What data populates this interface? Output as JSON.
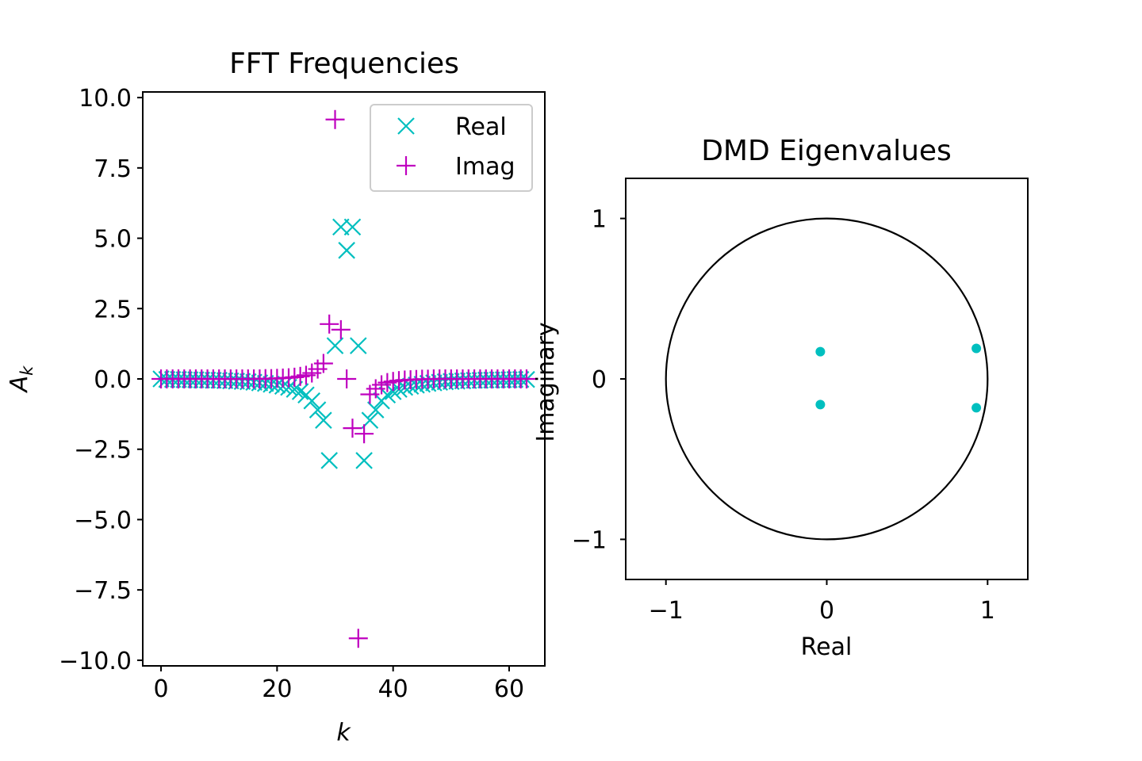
{
  "colors": {
    "real": "#00bfbf",
    "imag": "#bf00bf",
    "eig": "#00bfbf",
    "circle": "#000000"
  },
  "chart_data": [
    {
      "type": "scatter",
      "title": "FFT Frequencies",
      "xlabel": "k",
      "ylabel_base": "A",
      "ylabel_sub": "k",
      "xlim": [
        -3.15,
        66.15
      ],
      "ylim": [
        -10.2,
        10.2
      ],
      "xticks": [
        0,
        20,
        40,
        60
      ],
      "xtick_labels": [
        "0",
        "20",
        "40",
        "60"
      ],
      "yticks": [
        10,
        7.5,
        5,
        2.5,
        0,
        -2.5,
        -5,
        -7.5,
        -10
      ],
      "ytick_labels": [
        "10.0",
        "7.5",
        "5.0",
        "2.5",
        "0.0",
        "−2.5",
        "−5.0",
        "−7.5",
        "−10.0"
      ],
      "legend": {
        "placement": "top-right",
        "entries": [
          "Real",
          "Imag"
        ]
      },
      "x": [
        0,
        1,
        2,
        3,
        4,
        5,
        6,
        7,
        8,
        9,
        10,
        11,
        12,
        13,
        14,
        15,
        16,
        17,
        18,
        19,
        20,
        21,
        22,
        23,
        24,
        25,
        26,
        27,
        28,
        29,
        30,
        31,
        32,
        33,
        34,
        35,
        36,
        37,
        38,
        39,
        40,
        41,
        42,
        43,
        44,
        45,
        46,
        47,
        48,
        49,
        50,
        51,
        52,
        53,
        54,
        55,
        56,
        57,
        58,
        59,
        60,
        61,
        62,
        63
      ],
      "series": [
        {
          "name": "Real",
          "marker": "x",
          "values": [
            0,
            -0.02,
            -0.02,
            -0.02,
            -0.03,
            -0.03,
            -0.03,
            -0.04,
            -0.04,
            -0.05,
            -0.05,
            -0.06,
            -0.07,
            -0.08,
            -0.09,
            -0.1,
            -0.12,
            -0.14,
            -0.16,
            -0.19,
            -0.22,
            -0.26,
            -0.3,
            -0.37,
            -0.45,
            -0.57,
            -0.78,
            -1.1,
            -1.47,
            -2.9,
            1.18,
            5.4,
            4.57,
            5.4,
            1.18,
            -2.9,
            -1.47,
            -1.1,
            -0.78,
            -0.57,
            -0.45,
            -0.37,
            -0.3,
            -0.26,
            -0.22,
            -0.19,
            -0.16,
            -0.14,
            -0.12,
            -0.1,
            -0.09,
            -0.08,
            -0.07,
            -0.06,
            -0.05,
            -0.05,
            -0.04,
            -0.04,
            -0.03,
            -0.03,
            -0.03,
            -0.02,
            -0.02,
            -0.02
          ]
        },
        {
          "name": "Imag",
          "marker": "+",
          "values": [
            0,
            0,
            0,
            0,
            0,
            0,
            0,
            0,
            0,
            0,
            0,
            0,
            0,
            0,
            0,
            0,
            0,
            0,
            0.01,
            0.01,
            0.02,
            0.03,
            0.04,
            0.06,
            0.09,
            0.13,
            0.21,
            0.35,
            0.55,
            1.95,
            9.22,
            1.75,
            0,
            -1.75,
            -9.22,
            -1.95,
            -0.55,
            -0.35,
            -0.21,
            -0.13,
            -0.09,
            -0.06,
            -0.04,
            -0.03,
            -0.02,
            -0.01,
            -0.01,
            0,
            0,
            0,
            0,
            0,
            0,
            0,
            0,
            0,
            0,
            0,
            0,
            0,
            0,
            0,
            0,
            0
          ]
        }
      ]
    },
    {
      "type": "scatter",
      "title": "DMD Eigenvalues",
      "xlabel": "Real",
      "ylabel": "Imaginary",
      "xlim": [
        -1.25,
        1.25
      ],
      "ylim": [
        -1.25,
        1.25
      ],
      "xticks": [
        -1,
        0,
        1
      ],
      "xtick_labels": [
        "−1",
        "0",
        "1"
      ],
      "yticks": [
        1,
        0,
        -1
      ],
      "ytick_labels": [
        "1",
        "0",
        "−1"
      ],
      "unit_circle": true,
      "points": [
        {
          "x": -0.04,
          "y": 0.17
        },
        {
          "x": -0.04,
          "y": -0.16
        },
        {
          "x": 0.93,
          "y": 0.19
        },
        {
          "x": 0.93,
          "y": -0.18
        }
      ]
    }
  ]
}
